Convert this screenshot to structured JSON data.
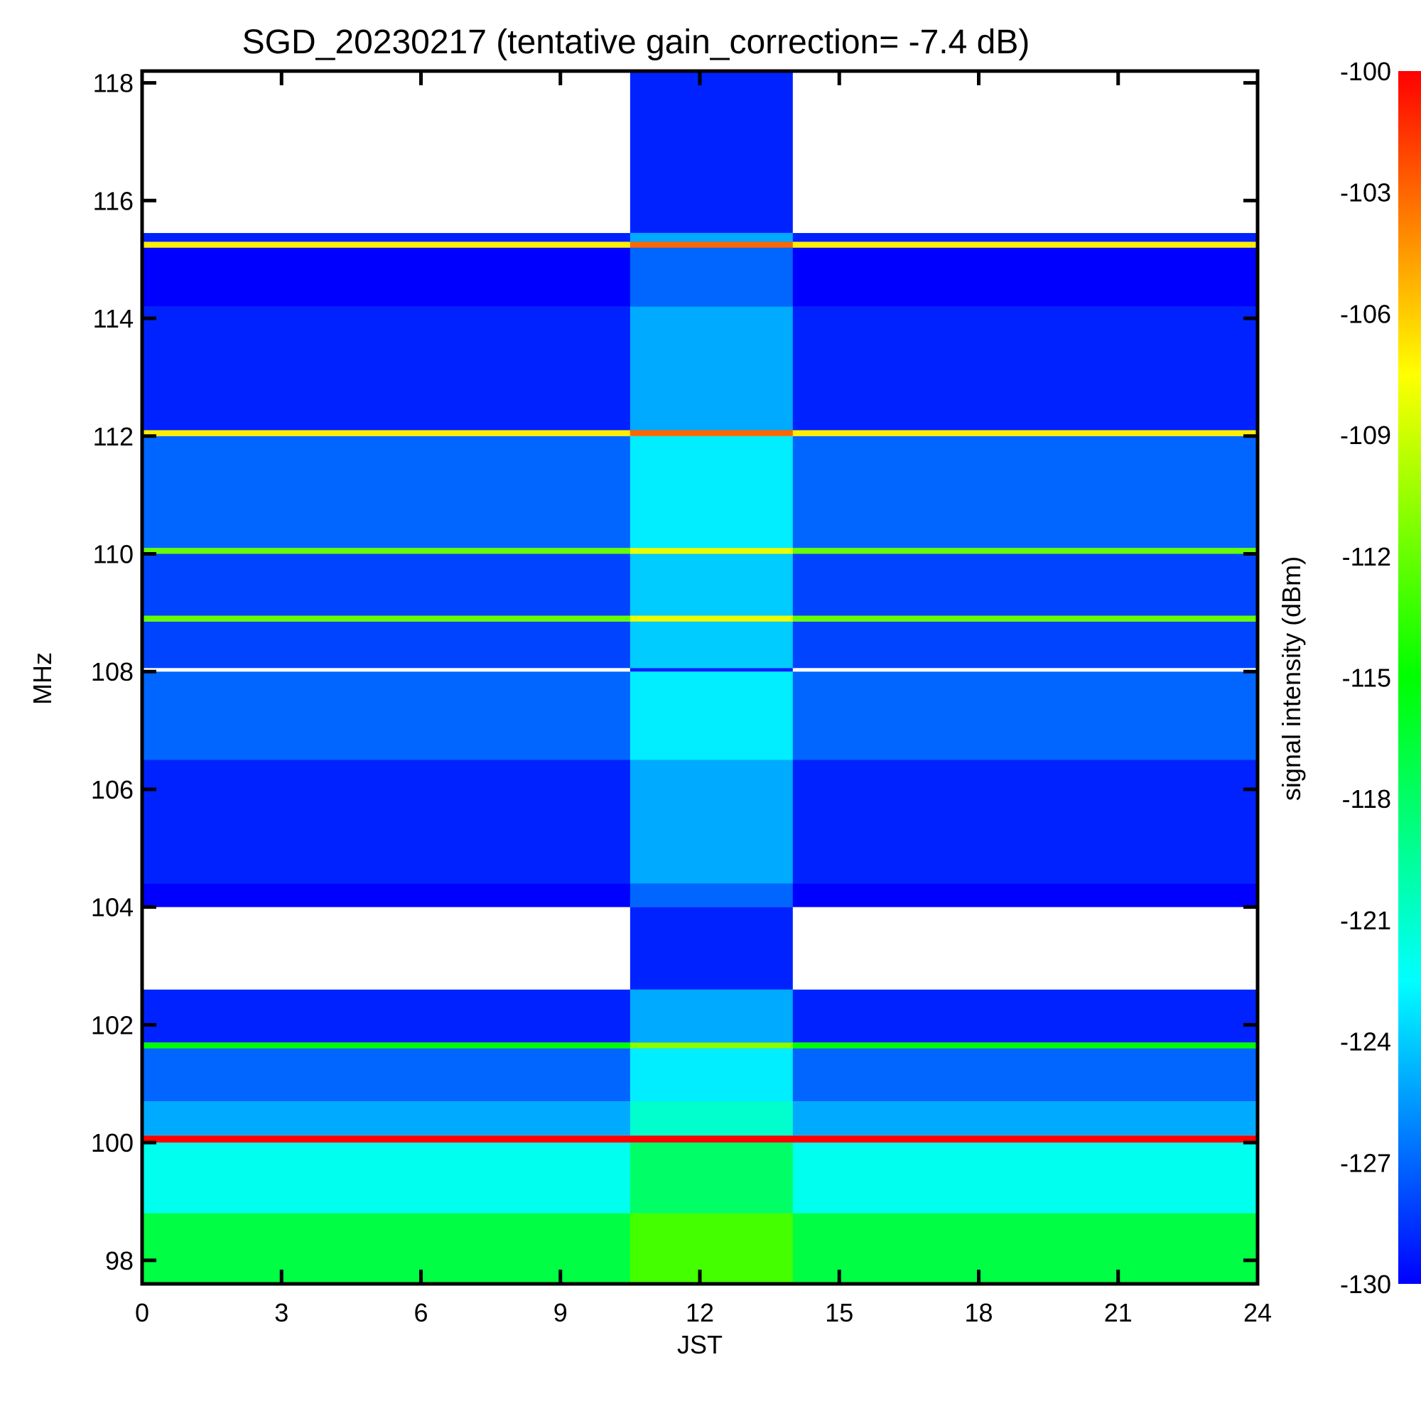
{
  "chart_data": {
    "type": "heatmap",
    "title": "SGD_20230217 (tentative gain_correction= -7.4 dB)",
    "xlabel": "JST",
    "ylabel": "MHz",
    "colorbar_label": "signal intensity (dBm)",
    "xlim": [
      0,
      24
    ],
    "ylim": [
      97.6,
      118.2
    ],
    "x_ticks": [
      "0",
      "3",
      "6",
      "9",
      "12",
      "15",
      "18",
      "21",
      "24"
    ],
    "x_tick_values": [
      0,
      3,
      6,
      9,
      12,
      15,
      18,
      21,
      24
    ],
    "y_ticks": [
      "98",
      "100",
      "102",
      "104",
      "106",
      "108",
      "110",
      "112",
      "114",
      "116",
      "118"
    ],
    "y_tick_values": [
      98,
      100,
      102,
      104,
      106,
      108,
      110,
      112,
      114,
      116,
      118
    ],
    "color_range": [
      -130,
      -100
    ],
    "colorbar_ticks": [
      "-100",
      "-103",
      "-106",
      "-109",
      "-112",
      "-115",
      "-118",
      "-121",
      "-124",
      "-127",
      "-130"
    ],
    "colorbar_tick_values": [
      -100,
      -103,
      -106,
      -109,
      -112,
      -115,
      -118,
      -121,
      -124,
      -127,
      -130
    ],
    "colorscale": [
      "#0000ff",
      "#0080ff",
      "#00ffff",
      "#00ff80",
      "#00ff00",
      "#80ff00",
      "#ffff00",
      "#ff8000",
      "#ff0000"
    ],
    "bands": [
      {
        "f_min": 97.6,
        "f_max": 98.8,
        "level": -117
      },
      {
        "f_min": 98.8,
        "f_max": 100.0,
        "level": -122
      },
      {
        "f_min": 100.0,
        "f_max": 100.12,
        "level": -100
      },
      {
        "f_min": 100.12,
        "f_max": 100.7,
        "level": -125
      },
      {
        "f_min": 100.7,
        "f_max": 101.6,
        "level": -127
      },
      {
        "f_min": 101.6,
        "f_max": 101.7,
        "level": -115
      },
      {
        "f_min": 101.7,
        "f_max": 102.6,
        "level": -129
      },
      {
        "f_min": 102.6,
        "f_max": 104.0,
        "level": -133
      },
      {
        "f_min": 104.0,
        "f_max": 104.4,
        "level": -131
      },
      {
        "f_min": 104.4,
        "f_max": 106.5,
        "level": -129
      },
      {
        "f_min": 106.5,
        "f_max": 108.0,
        "level": -127
      },
      {
        "f_min": 108.0,
        "f_max": 108.06,
        "level": -133
      },
      {
        "f_min": 108.06,
        "f_max": 108.85,
        "level": -128
      },
      {
        "f_min": 108.85,
        "f_max": 108.95,
        "level": -112
      },
      {
        "f_min": 108.95,
        "f_max": 110.0,
        "level": -128
      },
      {
        "f_min": 110.0,
        "f_max": 110.1,
        "level": -112
      },
      {
        "f_min": 110.1,
        "f_max": 112.0,
        "level": -127
      },
      {
        "f_min": 112.0,
        "f_max": 112.1,
        "level": -107
      },
      {
        "f_min": 112.1,
        "f_max": 114.2,
        "level": -129
      },
      {
        "f_min": 114.2,
        "f_max": 115.2,
        "level": -131
      },
      {
        "f_min": 115.2,
        "f_max": 115.3,
        "level": -107
      },
      {
        "f_min": 115.3,
        "f_max": 115.45,
        "level": -129
      },
      {
        "f_min": 115.45,
        "f_max": 118.2,
        "level": -133
      }
    ],
    "active_period": {
      "x_start": 10.5,
      "x_end": 14.0,
      "boost_db": 4
    }
  }
}
